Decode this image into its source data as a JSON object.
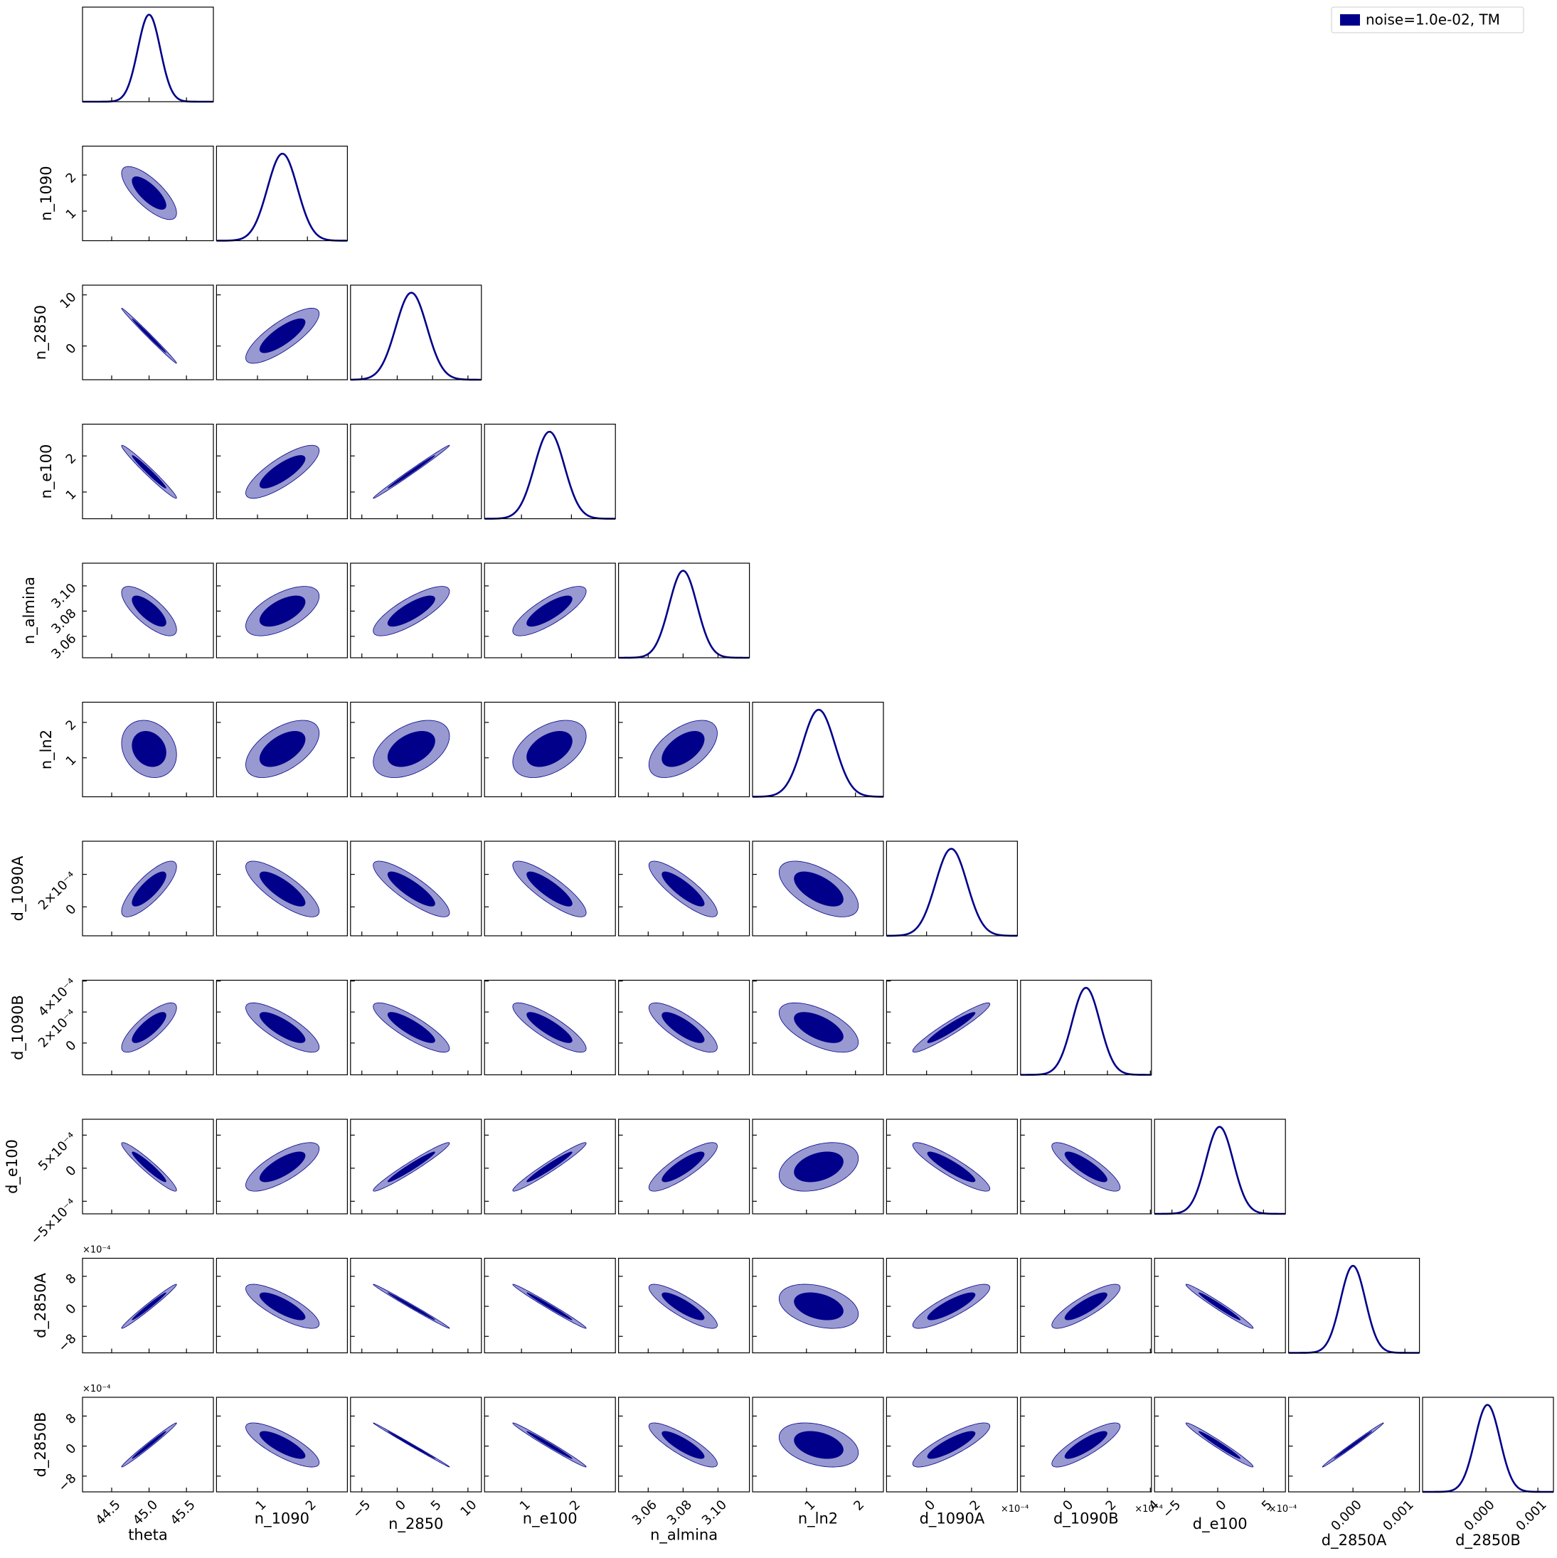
{
  "chart_data": {
    "type": "corner",
    "series": {
      "name": "noise=1.0e-02, TM",
      "color": "#00008b"
    },
    "parameters": [
      {
        "name": "theta",
        "mean": 45.0,
        "sigma": 0.15,
        "lim": [
          44.11,
          45.86
        ],
        "xticks": [
          44.5,
          {
            "value": 45.0,
            "label": "45.0"
          },
          45.5
        ]
      },
      {
        "name": "n_1090",
        "mean": 1.5,
        "sigma": 0.3,
        "lim": [
          0.18,
          2.8
        ],
        "xticks": [
          1,
          2
        ],
        "yticks": [
          1,
          2
        ]
      },
      {
        "name": "n_2850",
        "mean": 2.0,
        "sigma": 2.2,
        "lim": [
          -6.6,
          11.9
        ],
        "xticks": [
          {
            "value": -5,
            "label": "−5"
          },
          0,
          5,
          10
        ],
        "yticks": [
          0,
          10
        ]
      },
      {
        "name": "n_e100",
        "mean": 1.56,
        "sigma": 0.3,
        "lim": [
          0.26,
          2.88
        ],
        "xticks": [
          1,
          2
        ],
        "yticks": [
          1,
          2
        ]
      },
      {
        "name": "n_almina",
        "mean": 3.08,
        "sigma": 0.008,
        "lim": [
          3.043,
          3.118
        ],
        "xticks": [
          3.06,
          3.08,
          {
            "value": 3.1,
            "label": "3.10"
          }
        ],
        "yticks": [
          3.06,
          3.08,
          {
            "value": 3.1,
            "label": "3.10"
          }
        ]
      },
      {
        "name": "n_ln2",
        "mean": 1.25,
        "sigma": 0.33,
        "lim": [
          -0.1,
          2.57
        ],
        "xticks": [
          1,
          2
        ],
        "yticks": [
          1,
          2
        ]
      },
      {
        "name": "d_1090A",
        "mean": 0.00011,
        "sigma": 7e-05,
        "lim": [
          -0.000178,
          0.000404
        ],
        "xticks": [
          0,
          {
            "value": 0.0002,
            "label": "2"
          }
        ],
        "yticks": [
          0,
          {
            "value": 0.0002,
            "label": "2×10⁻⁴"
          }
        ],
        "x_offset_label": "×10⁻⁴"
      },
      {
        "name": "d_1090B",
        "mean": 0.0001,
        "sigma": 6.5e-05,
        "lim": [
          -0.000205,
          0.000405
        ],
        "xticks": [
          0,
          {
            "value": 0.0002,
            "label": "2"
          },
          {
            "value": 0.0004,
            "label": "4"
          }
        ],
        "yticks": [
          0,
          {
            "value": 0.0002,
            "label": "2×10⁻⁴"
          },
          {
            "value": 0.0004,
            "label": "4×10⁻⁴"
          }
        ],
        "x_offset_label": "×10⁻⁴"
      },
      {
        "name": "d_e100",
        "mean": 2e-05,
        "sigma": 0.00015,
        "lim": [
          -0.00069,
          0.00074
        ],
        "xticks": [
          {
            "value": -0.0005,
            "label": "−5"
          },
          0,
          {
            "value": 0.0005,
            "label": "5"
          }
        ],
        "yticks": [
          {
            "value": -0.0005,
            "label": "−5×10⁻⁴"
          },
          0,
          {
            "value": 0.0005,
            "label": "5×10⁻⁴"
          }
        ],
        "x_offset_label": "×10⁻⁴"
      },
      {
        "name": "d_2850A",
        "mean": 0,
        "sigma": 0.00024,
        "lim": [
          -0.00124,
          0.00128
        ],
        "xticks": [
          {
            "value": 0,
            "label": "0.000"
          },
          0.001
        ],
        "yticks": [
          {
            "value": -0.0008,
            "label": "−8"
          },
          0,
          {
            "value": 0.0008,
            "label": "8"
          }
        ],
        "y_offset_label": "×10⁻⁴"
      },
      {
        "name": "d_2850B",
        "mean": 3e-05,
        "sigma": 0.00024,
        "lim": [
          -0.00122,
          0.0013
        ],
        "xticks": [
          {
            "value": 0,
            "label": "0.000"
          },
          0.001
        ],
        "yticks": [
          {
            "value": -0.0008,
            "label": "−8"
          },
          0,
          {
            "value": 0.0008,
            "label": "8"
          }
        ],
        "y_offset_label": "×10⁻⁴"
      }
    ],
    "correlations": [
      [],
      [
        -0.75
      ],
      [
        -0.995,
        0.8
      ],
      [
        -0.98,
        0.8,
        0.995
      ],
      [
        -0.75,
        0.6,
        0.8,
        0.8
      ],
      [
        -0.2,
        0.55,
        0.45,
        0.45,
        0.55
      ],
      [
        0.8,
        -0.8,
        -0.85,
        -0.85,
        -0.85,
        -0.6
      ],
      [
        0.8,
        -0.8,
        -0.85,
        -0.85,
        -0.8,
        -0.6,
        0.95
      ],
      [
        -0.95,
        0.75,
        0.97,
        0.97,
        0.85,
        0.35,
        -0.9,
        -0.85
      ],
      [
        0.985,
        -0.8,
        -0.995,
        -0.99,
        -0.85,
        -0.35,
        0.85,
        0.85,
        -0.98
      ],
      [
        0.99,
        -0.8,
        -0.998,
        -0.99,
        -0.85,
        -0.35,
        0.85,
        0.85,
        -0.98,
        0.995
      ]
    ]
  }
}
